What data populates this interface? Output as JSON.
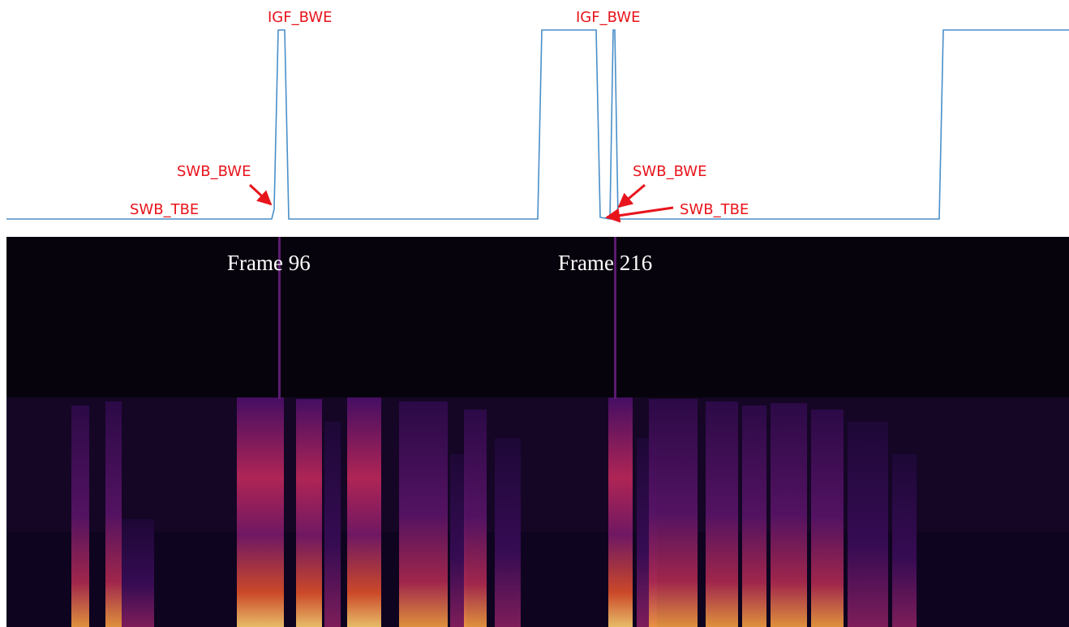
{
  "plot_labels": {
    "igf_bwe_left": "IGF_BWE",
    "swb_bwe_left": "SWB_BWE",
    "swb_tbe_left": "SWB_TBE",
    "igf_bwe_right": "IGF_BWE",
    "swb_bwe_right": "SWB_BWE",
    "swb_tbe_right": "SWB_TBE"
  },
  "spectrogram_labels": {
    "frame_left": "Frame 96",
    "frame_right": "Frame 216"
  }
}
